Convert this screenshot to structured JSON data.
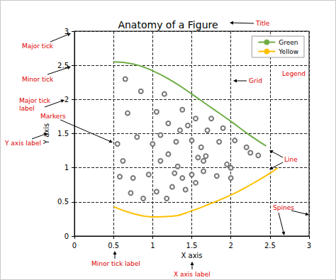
{
  "chart_data": {
    "type": "line",
    "title": "Anatomy of a Figure",
    "x_label": "X axis",
    "y_label": "Y axis",
    "xlim": [
      0,
      3
    ],
    "ylim": [
      0,
      3
    ],
    "xticks": [
      0,
      0.5,
      1,
      1.5,
      2,
      2.5,
      3
    ],
    "yticks": [
      0,
      0.5,
      1,
      1.5,
      2,
      2.5,
      3
    ],
    "grid": true,
    "legend": "upper right",
    "series": [
      {
        "type": "scatter",
        "marker": "o",
        "color": "#555555",
        "x": [
          0.65,
          0.85,
          1.15,
          0.68,
          1.05,
          0.55,
          0.8,
          1.0,
          0.62,
          0.58,
          1.1,
          1.2,
          1.35,
          1.38,
          1.55,
          1.45,
          1.3,
          1.5,
          1.62,
          1.7,
          1.75,
          1.85,
          1.9,
          2.05,
          2.25,
          2.35,
          2.2,
          1.95,
          2.0,
          2.0,
          1.65,
          1.68,
          1.2,
          1.1,
          0.95,
          0.75,
          0.72,
          0.88,
          1.05,
          1.25,
          1.38,
          1.5,
          1.55,
          1.42,
          1.18,
          1.28,
          1.65,
          1.82,
          1.32,
          1.58
        ],
        "values": [
          2.3,
          2.12,
          2.08,
          1.8,
          1.82,
          1.35,
          1.45,
          1.35,
          1.1,
          0.87,
          1.48,
          1.65,
          1.55,
          1.85,
          1.72,
          1.62,
          1.38,
          1.4,
          1.3,
          1.55,
          1.72,
          1.38,
          1.58,
          1.4,
          1.22,
          1.18,
          1.3,
          1.05,
          1.0,
          0.85,
          1.1,
          1.17,
          1.2,
          1.1,
          0.9,
          0.85,
          0.63,
          0.55,
          0.65,
          0.72,
          0.85,
          0.9,
          0.78,
          0.68,
          0.55,
          0.92,
          0.95,
          0.88,
          1.02,
          1.15
        ]
      },
      {
        "name": "Green",
        "type": "line",
        "color": "#70ad47",
        "line_style": "solid",
        "x": [
          0.5,
          0.75,
          1.0,
          1.25,
          1.5,
          1.75,
          2.0,
          2.25,
          2.45
        ],
        "values": [
          2.55,
          2.52,
          2.42,
          2.27,
          2.08,
          1.88,
          1.68,
          1.47,
          1.32
        ]
      },
      {
        "name": "Yellow",
        "type": "line",
        "color": "#ffc000",
        "line_style": "solid",
        "x": [
          0.5,
          0.75,
          1.0,
          1.25,
          1.5,
          1.75,
          2.0,
          2.25,
          2.5,
          2.6
        ],
        "values": [
          0.43,
          0.33,
          0.28,
          0.29,
          0.37,
          0.48,
          0.6,
          0.75,
          0.92,
          1.0
        ]
      }
    ],
    "annotations": [
      {
        "text": "Title"
      },
      {
        "text": "Major tick"
      },
      {
        "text": "Minor tick"
      },
      {
        "text": "Major tick label"
      },
      {
        "text": "Y axis label"
      },
      {
        "text": "Markers"
      },
      {
        "text": "Grid"
      },
      {
        "text": "Legend"
      },
      {
        "text": "Line"
      },
      {
        "text": "Spines"
      },
      {
        "text": "Minor tick label"
      },
      {
        "text": "X axis label"
      }
    ]
  }
}
